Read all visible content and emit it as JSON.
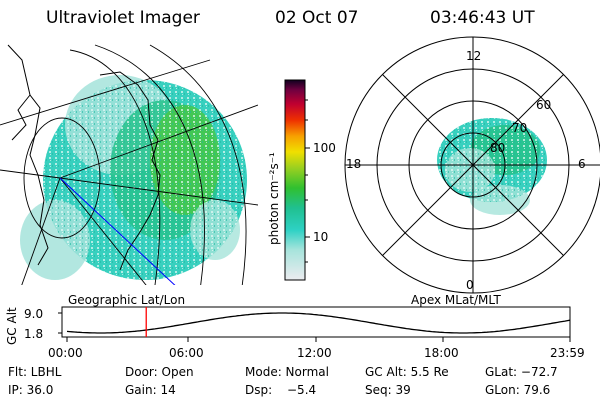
{
  "header": {
    "instrument": "Ultraviolet Imager",
    "date": "02 Oct 07",
    "time": "03:46:43 UT"
  },
  "geo_panel": {
    "caption": "Geographic Lat/Lon"
  },
  "colorbar": {
    "unit_label": "photon cm⁻²s⁻¹",
    "ticks": [
      "100",
      "10"
    ],
    "scale": "log",
    "colors": [
      "#e8e8ee",
      "#9fe0d8",
      "#2ed1c4",
      "#20c090",
      "#30c030",
      "#9ad020",
      "#f0e000",
      "#f7a000",
      "#ee3000",
      "#c00030",
      "#700040",
      "#100020"
    ]
  },
  "polar_panel": {
    "caption": "Apex MLat/MLT",
    "mlt_labels": {
      "top": "12",
      "right": "6",
      "bottom": "0",
      "left": "18"
    },
    "mlat_labels": [
      "60",
      "70",
      "80"
    ]
  },
  "altitude_plot": {
    "ylabel": "GC Alt",
    "yticks": [
      "9.0",
      "1.8"
    ],
    "ylim": [
      1.8,
      9.0
    ],
    "xticks": [
      "00:00",
      "06:00",
      "12:00",
      "18:00",
      "23:59"
    ],
    "current_time_hours": 3.78,
    "marker_color": "#ff0000"
  },
  "info": {
    "row1": [
      "Flt: LBHL",
      "Door: Open",
      "Mode: Normal",
      "GC Alt: 5.5 Re",
      "GLat: −72.7"
    ],
    "row2": [
      "IP: 36.0",
      "Gain: 14",
      "Dsp:",
      "Seq: 39",
      "GLon:  79.6"
    ],
    "dsp_value": "−5.4"
  }
}
